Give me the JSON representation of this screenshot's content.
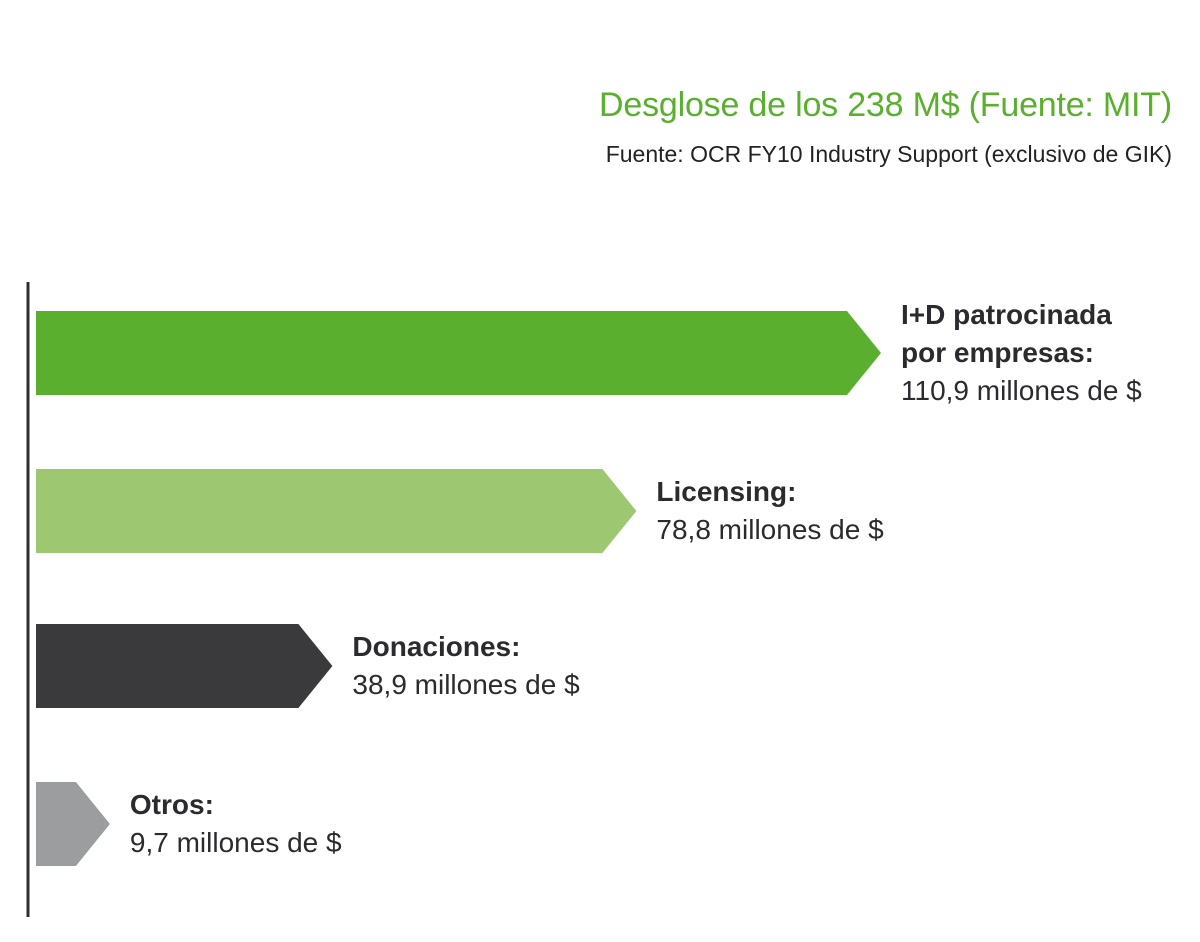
{
  "title": "Desglose de los 238 M$ (Fuente: MIT)",
  "subtitle": "Fuente: OCR FY10 Industry Support (exclusivo de GIK)",
  "colors": {
    "title": "#5aaf2e",
    "axis": "#2e2e30"
  },
  "chart_data": {
    "type": "bar",
    "orientation": "horizontal",
    "unit": "millones de $",
    "categories": [
      "I+D patrocinada por empresas:",
      "Licensing:",
      "Donaciones:",
      "Otros:"
    ],
    "values": [
      110.9,
      78.8,
      38.9,
      9.7
    ],
    "value_labels": [
      "110,9 millones de $",
      "78,8 millones de $",
      "38,9 millones de $",
      "9,7 millones de $"
    ],
    "colors": [
      "#5aaf2e",
      "#9ec772",
      "#3a3a3d",
      "#9c9d9f"
    ],
    "grid": false,
    "legend": "none"
  }
}
